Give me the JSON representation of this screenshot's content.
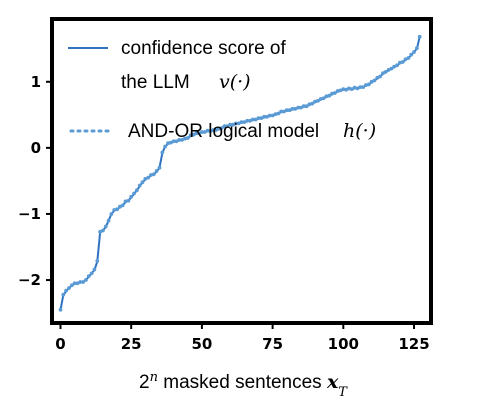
{
  "chart_data": {
    "type": "line",
    "title": "",
    "xlabel": "2^n masked sentences x_T",
    "xlabel_parts": {
      "base": "2",
      "exp": "n",
      "text": " masked sentences ",
      "var": "x",
      "sub": "T"
    },
    "ylabel": "",
    "xlim": [
      -3,
      131
    ],
    "ylim": [
      -2.65,
      1.95
    ],
    "xticks": [
      0,
      25,
      50,
      75,
      100,
      125
    ],
    "yticks": [
      -2,
      -1,
      0,
      1
    ],
    "ytick_labels": [
      "−2",
      "−1",
      "0",
      "1"
    ],
    "grid": false,
    "legend_position": "top-left",
    "series": [
      {
        "name": "confidence score of the LLM v(·)",
        "name_line1": "confidence score of",
        "name_line2": "the LLM",
        "name_math": "v(·)",
        "style": "solid",
        "color": "#2f73c0"
      },
      {
        "name": "AND-OR logical model h(·)",
        "name_line1": "AND-OR logical model",
        "name_math": "h(·)",
        "style": "dotted",
        "color": "#5b9bd5"
      }
    ],
    "x": [
      0,
      1,
      2,
      3,
      4,
      5,
      6,
      7,
      8,
      9,
      10,
      11,
      12,
      13,
      14,
      15,
      16,
      17,
      18,
      19,
      20,
      21,
      22,
      23,
      24,
      25,
      26,
      27,
      28,
      29,
      30,
      31,
      32,
      33,
      34,
      35,
      36,
      37,
      38,
      39,
      40,
      41,
      42,
      43,
      44,
      45,
      46,
      47,
      48,
      49,
      50,
      51,
      52,
      53,
      54,
      55,
      56,
      57,
      58,
      59,
      60,
      61,
      62,
      63,
      64,
      65,
      66,
      67,
      68,
      69,
      70,
      71,
      72,
      73,
      74,
      75,
      76,
      77,
      78,
      79,
      80,
      81,
      82,
      83,
      84,
      85,
      86,
      87,
      88,
      89,
      90,
      91,
      92,
      93,
      94,
      95,
      96,
      97,
      98,
      99,
      100,
      101,
      102,
      103,
      104,
      105,
      106,
      107,
      108,
      109,
      110,
      111,
      112,
      113,
      114,
      115,
      116,
      117,
      118,
      119,
      120,
      121,
      122,
      123,
      124,
      125,
      126,
      127
    ],
    "y": [
      -2.45,
      -2.23,
      -2.17,
      -2.12,
      -2.08,
      -2.06,
      -2.05,
      -2.04,
      -2.03,
      -2.0,
      -1.95,
      -1.9,
      -1.85,
      -1.72,
      -1.28,
      -1.25,
      -1.2,
      -1.1,
      -1.0,
      -0.95,
      -0.93,
      -0.9,
      -0.87,
      -0.82,
      -0.8,
      -0.75,
      -0.7,
      -0.64,
      -0.58,
      -0.52,
      -0.48,
      -0.45,
      -0.42,
      -0.4,
      -0.36,
      -0.3,
      -0.08,
      0.02,
      0.06,
      0.08,
      0.09,
      0.1,
      0.11,
      0.12,
      0.13,
      0.15,
      0.18,
      0.2,
      0.21,
      0.22,
      0.23,
      0.24,
      0.25,
      0.25,
      0.26,
      0.27,
      0.28,
      0.3,
      0.32,
      0.33,
      0.34,
      0.35,
      0.36,
      0.37,
      0.38,
      0.39,
      0.4,
      0.41,
      0.42,
      0.43,
      0.44,
      0.45,
      0.46,
      0.47,
      0.48,
      0.49,
      0.5,
      0.52,
      0.54,
      0.55,
      0.56,
      0.57,
      0.58,
      0.59,
      0.6,
      0.61,
      0.62,
      0.63,
      0.65,
      0.67,
      0.69,
      0.71,
      0.73,
      0.75,
      0.77,
      0.79,
      0.81,
      0.83,
      0.85,
      0.87,
      0.88,
      0.88,
      0.89,
      0.89,
      0.9,
      0.9,
      0.91,
      0.92,
      0.94,
      0.96,
      0.99,
      1.02,
      1.05,
      1.08,
      1.12,
      1.15,
      1.17,
      1.2,
      1.22,
      1.25,
      1.28,
      1.3,
      1.33,
      1.36,
      1.4,
      1.45,
      1.5,
      1.68
    ],
    "y_model": [
      -2.45,
      -2.22,
      -2.16,
      -2.12,
      -2.08,
      -2.05,
      -2.05,
      -2.03,
      -2.03,
      -2.0,
      -1.94,
      -1.9,
      -1.84,
      -1.71,
      -1.27,
      -1.25,
      -1.19,
      -1.1,
      -1.0,
      -0.94,
      -0.93,
      -0.89,
      -0.87,
      -0.81,
      -0.8,
      -0.74,
      -0.69,
      -0.64,
      -0.57,
      -0.52,
      -0.47,
      -0.45,
      -0.41,
      -0.4,
      -0.35,
      -0.3,
      -0.07,
      0.02,
      0.07,
      0.08,
      0.1,
      0.1,
      0.12,
      0.12,
      0.14,
      0.15,
      0.19,
      0.2,
      0.22,
      0.22,
      0.24,
      0.24,
      0.26,
      0.25,
      0.27,
      0.27,
      0.29,
      0.3,
      0.33,
      0.33,
      0.35,
      0.35,
      0.37,
      0.37,
      0.39,
      0.39,
      0.41,
      0.41,
      0.43,
      0.43,
      0.45,
      0.45,
      0.47,
      0.47,
      0.49,
      0.49,
      0.51,
      0.52,
      0.55,
      0.55,
      0.57,
      0.57,
      0.59,
      0.59,
      0.61,
      0.61,
      0.63,
      0.63,
      0.66,
      0.67,
      0.7,
      0.71,
      0.74,
      0.75,
      0.78,
      0.79,
      0.82,
      0.83,
      0.86,
      0.87,
      0.89,
      0.88,
      0.9,
      0.89,
      0.91,
      0.9,
      0.92,
      0.92,
      0.95,
      0.96,
      1.0,
      1.02,
      1.06,
      1.08,
      1.13,
      1.15,
      1.18,
      1.2,
      1.23,
      1.25,
      1.29,
      1.3,
      1.34,
      1.36,
      1.41,
      1.45,
      1.51,
      1.68
    ]
  }
}
